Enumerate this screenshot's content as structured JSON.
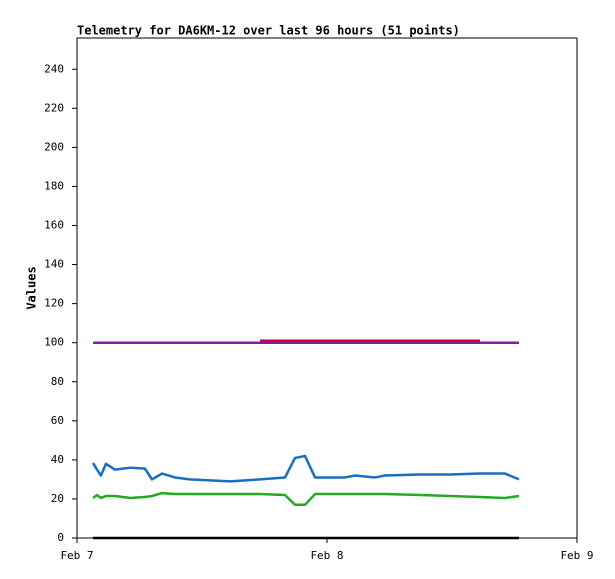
{
  "chart_data": {
    "type": "line",
    "title": "Telemetry for DA6KM-12 over last 96 hours (51 points)",
    "y_label": "Values",
    "x": [
      1.54,
      1.92,
      2.3,
      2.78,
      3.65,
      5.09,
      6.53,
      7.2,
      8.16,
      9.41,
      10.85,
      14.69,
      17.57,
      19.97,
      20.93,
      21.89,
      22.85,
      25.73,
      26.69,
      28.61,
      29.57,
      32.93,
      35.81,
      38.69,
      41.09,
      42.43
    ],
    "series": [
      {
        "color": "#1a6ec0",
        "values": [
          38.4,
          35,
          32,
          38,
          35,
          36,
          35.5,
          30,
          33,
          31,
          30,
          29,
          30,
          31,
          41,
          42,
          31,
          31,
          32,
          31,
          32,
          32.5,
          32.5,
          33,
          33,
          30
        ]
      },
      {
        "color": "#22aa22",
        "values": [
          20.5,
          22,
          20.5,
          21.5,
          21.5,
          20.5,
          21,
          21.5,
          23,
          22.5,
          22.5,
          22.5,
          22.5,
          22,
          17,
          17,
          22.5,
          22.5,
          22.5,
          22.5,
          22.5,
          22,
          21.5,
          21,
          20.5,
          21.5
        ]
      },
      {
        "color": "#7f1f9f",
        "values": [
          100,
          100,
          100,
          100,
          100,
          100,
          100,
          100,
          100,
          100,
          100,
          100,
          100,
          100,
          100,
          100,
          100,
          100,
          100,
          100,
          100,
          100,
          100,
          100,
          100,
          100
        ]
      },
      {
        "color": "#cc0033",
        "values": [
          null,
          null,
          null,
          null,
          null,
          null,
          null,
          null,
          null,
          null,
          null,
          null,
          101,
          101,
          101,
          101,
          101,
          101,
          101,
          101,
          101,
          101,
          101,
          101,
          null,
          null
        ]
      },
      {
        "color": "#000000",
        "values": [
          0,
          0,
          0,
          0,
          0,
          0,
          0,
          0,
          0,
          0,
          0,
          0,
          0,
          0,
          0,
          0,
          0,
          0,
          0,
          0,
          0,
          0,
          0,
          0,
          0,
          0
        ]
      }
    ],
    "xlim": [
      0,
      48
    ],
    "xticks": [
      {
        "value": 0,
        "label": "Feb 7"
      },
      {
        "value": 24,
        "label": "Feb 8"
      },
      {
        "value": 48,
        "label": "Feb 9"
      }
    ],
    "ylim": [
      0,
      256
    ],
    "yticks": [
      0,
      20,
      40,
      60,
      80,
      100,
      120,
      140,
      160,
      180,
      200,
      220,
      240
    ],
    "grid": false
  }
}
